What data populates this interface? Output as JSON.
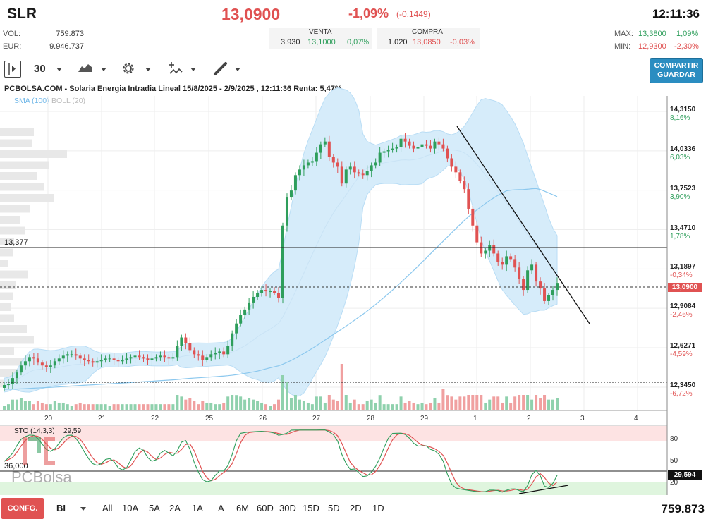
{
  "header": {
    "symbol": "SLR",
    "price": "13,0900",
    "change_pct": "-1,09%",
    "change_abs": "(-0,1449)",
    "time": "12:11:36",
    "vol_label": "VOL:",
    "vol_value": "759.873",
    "eur_label": "EUR:",
    "eur_value": "9.946.737",
    "venta_label": "VENTA",
    "venta_qty": "3.930",
    "venta_price": "13,1000",
    "venta_pct": "0,07%",
    "compra_label": "COMPRA",
    "compra_qty": "1.020",
    "compra_price": "13,0850",
    "compra_pct": "-0,03%",
    "max_label": "MAX:",
    "max_value": "13,3800",
    "max_pct": "1,09%",
    "min_label": "MIN:",
    "min_value": "12,9300",
    "min_pct": "-2,30%"
  },
  "toolbar": {
    "interval": "30",
    "share_line1": "COMPARTIR",
    "share_line2": "GUARDAR"
  },
  "chart": {
    "title": "PCBOLSA.COM - Solaria Energia Intradia Lineal 15/8/2025 - 2/9/2025 , 12:11:36 Renta: 5,47%",
    "legend_sma": "SMA (100)",
    "legend_boll": "BOLL (20)",
    "hline_label": "13,377",
    "stoch_label": "STO (14,3,3)",
    "stoch_value": "29,59",
    "stoch_hline_label": "36,000",
    "stoch_current": "29,594",
    "stoch_levels": [
      "80",
      "50",
      "20"
    ],
    "current_price_tag": "13,0900",
    "watermark": "PCBolsa",
    "colors": {
      "up": "#2e9e5b",
      "down": "#e05252",
      "band": "#d6ecfa",
      "sma": "#8cc8ee"
    }
  },
  "chart_data": {
    "type": "candlestick",
    "title": "PCBOLSA.COM - Solaria Energia Intradia Lineal 15/8/2025 - 2/9/2025 , 12:11:36 Renta: 5,47%",
    "y_ticks": [
      {
        "value": "14,3150",
        "pct": "8,16%"
      },
      {
        "value": "14,0336",
        "pct": "6,03%"
      },
      {
        "value": "13,7523",
        "pct": "3,90%"
      },
      {
        "value": "13,4710",
        "pct": "1,78%"
      },
      {
        "value": "13,1897",
        "pct": "-0,34%"
      },
      {
        "value": "12,9084",
        "pct": "-2,46%"
      },
      {
        "value": "12,6271",
        "pct": "-4,59%"
      },
      {
        "value": "12,3450",
        "pct": "-6,72%"
      }
    ],
    "x_ticks": [
      "20",
      "21",
      "22",
      "25",
      "26",
      "27",
      "28",
      "29",
      "1",
      "2",
      "3",
      "4"
    ],
    "ylim": [
      12.345,
      14.315
    ],
    "close": [
      12.36,
      12.37,
      12.41,
      12.45,
      12.5,
      12.53,
      12.56,
      12.55,
      12.52,
      12.5,
      12.49,
      12.5,
      12.53,
      12.55,
      12.57,
      12.58,
      12.58,
      12.57,
      12.55,
      12.54,
      12.53,
      12.52,
      12.53,
      12.54,
      12.55,
      12.55,
      12.54,
      12.53,
      12.54,
      12.55,
      12.56,
      12.57,
      12.56,
      12.55,
      12.54,
      12.55,
      12.56,
      12.57,
      12.56,
      12.55,
      12.56,
      12.64,
      12.7,
      12.66,
      12.61,
      12.58,
      12.57,
      12.54,
      12.56,
      12.58,
      12.59,
      12.6,
      12.58,
      12.64,
      12.73,
      12.8,
      12.86,
      12.9,
      12.95,
      12.99,
      13.02,
      13.04,
      13.03,
      13.03,
      13.02,
      12.98,
      13.5,
      13.7,
      13.75,
      13.86,
      13.9,
      13.93,
      13.95,
      13.96,
      14.02,
      14.08,
      14.1,
      13.99,
      13.95,
      13.92,
      13.8,
      13.9,
      13.92,
      13.88,
      13.87,
      13.86,
      13.89,
      13.93,
      13.95,
      14.02,
      14.03,
      14.04,
      14.05,
      14.06,
      14.12,
      14.1,
      14.07,
      14.05,
      14.06,
      14.08,
      14.07,
      14.05,
      14.1,
      14.08,
      14.05,
      13.98,
      13.92,
      13.88,
      13.82,
      13.76,
      13.62,
      13.5,
      13.38,
      13.3,
      13.32,
      13.36,
      13.3,
      13.24,
      13.22,
      13.28,
      13.26,
      13.2,
      13.12,
      13.04,
      13.18,
      13.22,
      13.1,
      13.05,
      12.96,
      13.0,
      13.04,
      13.09
    ],
    "volume_note": "volume bars shown below price",
    "sma_period": 100,
    "boll_period": 20
  }
}
